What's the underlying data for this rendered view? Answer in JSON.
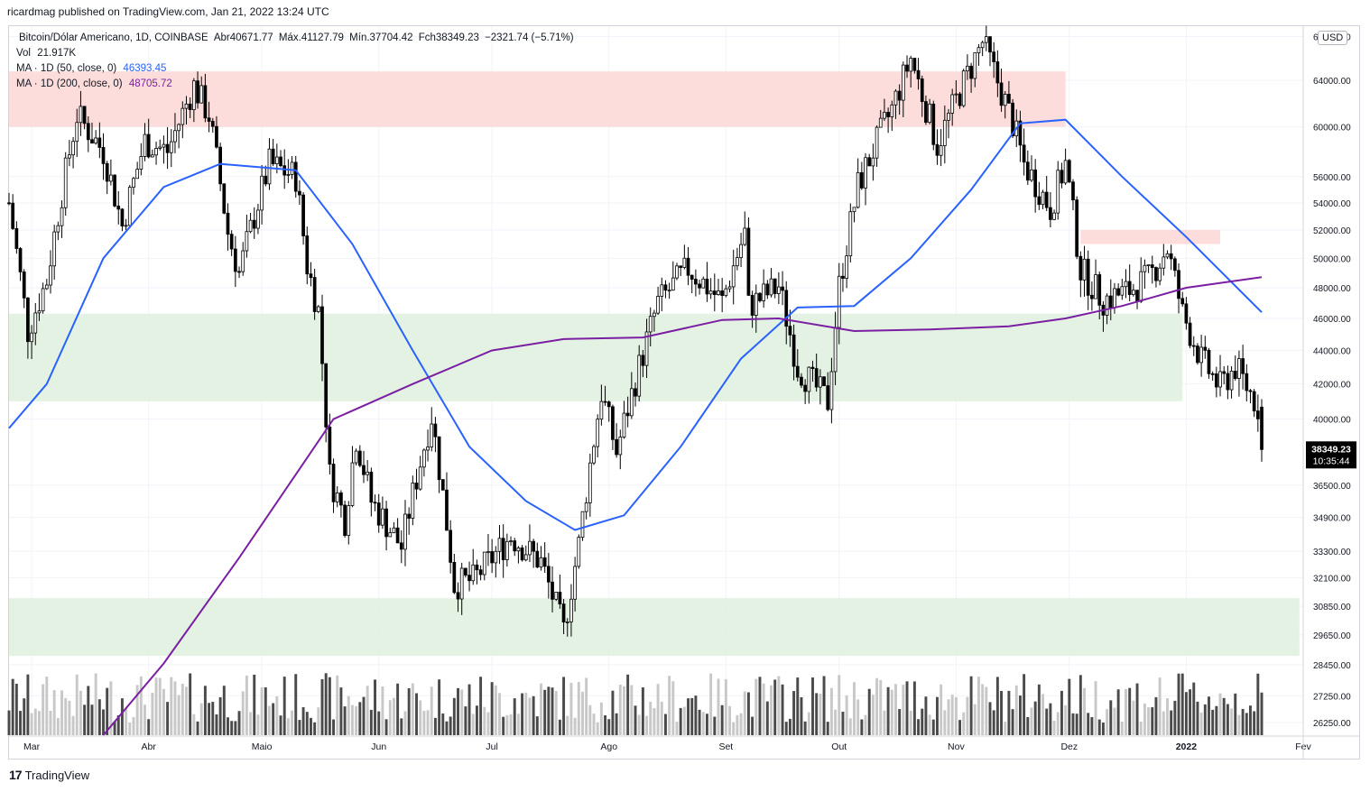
{
  "header": {
    "publisher": "ricardmag published on TradingView.com, Jan 21, 2022 13:24 UTC"
  },
  "legend": {
    "symbol": "Bitcoin/Dólar Americano, 1D, COINBASE",
    "open": "Abr40671.77",
    "high": "Máx.41127.79",
    "low": "Mín.37704.42",
    "close": "Fch38349.23",
    "change": "−2321.74 (−5.71%)",
    "vol_label": "Vol",
    "vol_value": "21.917K",
    "ma50_label": "MA · 1D (50, close, 0)",
    "ma50_value": "46393.45",
    "ma200_label": "MA · 1D (200, close, 0)",
    "ma200_value": "48705.72"
  },
  "price_axis": {
    "currency": "USD",
    "last_price": "38349.23",
    "countdown": "10:35:44"
  },
  "footer": {
    "brand": "TradingView"
  },
  "colors": {
    "up": "#ffffff",
    "down": "#000000",
    "ma50": "#2962ff",
    "ma200": "#7b1fa2",
    "supply_zone": "#fcd7d5",
    "demand_zone": "#dff0df",
    "vol_up": "#c8c8c8",
    "vol_down": "#4a4a4a"
  },
  "chart_data": {
    "type": "candlestick",
    "title": "Bitcoin/Dólar Americano, 1D, COINBASE",
    "x_ticks": [
      "Mar",
      "Abr",
      "Maio",
      "Jun",
      "Jul",
      "Ago",
      "Set",
      "Out",
      "Nov",
      "Dez",
      "2022",
      "Fev"
    ],
    "y_ticks": [
      "68000.00",
      "64000.00",
      "60000.00",
      "56000.00",
      "54000.00",
      "52000.00",
      "50000.00",
      "48000.00",
      "46000.00",
      "44000.00",
      "42000.00",
      "40000.00",
      "36500.00",
      "34900.00",
      "33300.00",
      "32100.00",
      "30850.00",
      "29650.00",
      "28450.00",
      "27250.00",
      "26250.00"
    ],
    "y_scale": "log",
    "x_range": [
      "2021-02-23",
      "2022-02-01"
    ],
    "y_range": [
      25800,
      69000
    ],
    "zones": [
      {
        "kind": "resistance",
        "from": "2021-02-23",
        "to": "2021-11-30",
        "low": 60000,
        "high": 64800
      },
      {
        "kind": "support",
        "from": "2021-02-23",
        "to": "2021-12-31",
        "low": 41000,
        "high": 46300
      },
      {
        "kind": "support",
        "from": "2021-02-23",
        "to": "2022-01-31",
        "low": 28800,
        "high": 31200
      },
      {
        "kind": "resistance",
        "from": "2021-12-04",
        "to": "2022-01-10",
        "low": 51000,
        "high": 52000
      }
    ],
    "close_path": [
      [
        "2021-02-23",
        54000
      ],
      [
        "2021-02-28",
        45200
      ],
      [
        "2021-03-05",
        48500
      ],
      [
        "2021-03-13",
        61000
      ],
      [
        "2021-03-20",
        58000
      ],
      [
        "2021-03-25",
        52300
      ],
      [
        "2021-03-31",
        58800
      ],
      [
        "2021-04-06",
        58000
      ],
      [
        "2021-04-13",
        63500
      ],
      [
        "2021-04-17",
        61000
      ],
      [
        "2021-04-22",
        51800
      ],
      [
        "2021-04-25",
        49000
      ],
      [
        "2021-05-03",
        57000
      ],
      [
        "2021-05-10",
        56000
      ],
      [
        "2021-05-13",
        49500
      ],
      [
        "2021-05-16",
        46500
      ],
      [
        "2021-05-19",
        37000
      ],
      [
        "2021-05-23",
        34800
      ],
      [
        "2021-05-26",
        39000
      ],
      [
        "2021-05-30",
        35700
      ],
      [
        "2021-06-07",
        33500
      ],
      [
        "2021-06-15",
        40200
      ],
      [
        "2021-06-21",
        31800
      ],
      [
        "2021-06-26",
        32000
      ],
      [
        "2021-07-06",
        34000
      ],
      [
        "2021-07-14",
        32800
      ],
      [
        "2021-07-20",
        29800
      ],
      [
        "2021-07-24",
        33600
      ],
      [
        "2021-07-30",
        41500
      ],
      [
        "2021-08-03",
        38200
      ],
      [
        "2021-08-14",
        47000
      ],
      [
        "2021-08-22",
        49300
      ],
      [
        "2021-08-31",
        47100
      ],
      [
        "2021-09-06",
        51800
      ],
      [
        "2021-09-07",
        46800
      ],
      [
        "2021-09-15",
        48100
      ],
      [
        "2021-09-20",
        43000
      ],
      [
        "2021-09-28",
        41000
      ],
      [
        "2021-10-01",
        48100
      ],
      [
        "2021-10-06",
        55300
      ],
      [
        "2021-10-15",
        61500
      ],
      [
        "2021-10-20",
        66000
      ],
      [
        "2021-10-27",
        58500
      ],
      [
        "2021-11-02",
        63000
      ],
      [
        "2021-11-08",
        67500
      ],
      [
        "2021-11-16",
        60300
      ],
      [
        "2021-11-19",
        57000
      ],
      [
        "2021-11-26",
        53600
      ],
      [
        "2021-11-30",
        57000
      ],
      [
        "2021-12-04",
        49200
      ],
      [
        "2021-12-10",
        47200
      ],
      [
        "2021-12-16",
        47700
      ],
      [
        "2021-12-22",
        48600
      ],
      [
        "2021-12-27",
        50700
      ],
      [
        "2021-12-31",
        46300
      ],
      [
        "2022-01-05",
        43400
      ],
      [
        "2022-01-10",
        41800
      ],
      [
        "2022-01-14",
        43000
      ],
      [
        "2022-01-20",
        40700
      ],
      [
        "2022-01-21",
        38349.23
      ]
    ],
    "series": [
      {
        "name": "MA · 1D (50, close, 0)",
        "value_last": 46393.45,
        "points": [
          [
            "2021-02-23",
            39500
          ],
          [
            "2021-03-05",
            42000
          ],
          [
            "2021-03-20",
            50000
          ],
          [
            "2021-04-05",
            55200
          ],
          [
            "2021-04-20",
            57000
          ],
          [
            "2021-05-10",
            56500
          ],
          [
            "2021-05-25",
            51000
          ],
          [
            "2021-06-10",
            44000
          ],
          [
            "2021-06-25",
            38500
          ],
          [
            "2021-07-10",
            35700
          ],
          [
            "2021-07-23",
            34300
          ],
          [
            "2021-08-05",
            35000
          ],
          [
            "2021-08-20",
            38500
          ],
          [
            "2021-09-05",
            43500
          ],
          [
            "2021-09-20",
            46700
          ],
          [
            "2021-10-05",
            46800
          ],
          [
            "2021-10-20",
            50000
          ],
          [
            "2021-11-05",
            55000
          ],
          [
            "2021-11-18",
            60300
          ],
          [
            "2021-11-30",
            60600
          ],
          [
            "2021-12-15",
            56000
          ],
          [
            "2022-01-01",
            51500
          ],
          [
            "2022-01-21",
            46393.45
          ]
        ]
      },
      {
        "name": "MA · 1D (200, close, 0)",
        "value_last": 48705.72,
        "points": [
          [
            "2021-03-20",
            25800
          ],
          [
            "2021-04-05",
            28500
          ],
          [
            "2021-04-25",
            33000
          ],
          [
            "2021-05-20",
            40000
          ],
          [
            "2021-06-10",
            42000
          ],
          [
            "2021-07-01",
            44000
          ],
          [
            "2021-07-20",
            44700
          ],
          [
            "2021-08-10",
            44800
          ],
          [
            "2021-08-31",
            45900
          ],
          [
            "2021-09-15",
            46000
          ],
          [
            "2021-10-05",
            45200
          ],
          [
            "2021-10-25",
            45300
          ],
          [
            "2021-11-15",
            45500
          ],
          [
            "2021-11-30",
            46000
          ],
          [
            "2021-12-15",
            46800
          ],
          [
            "2022-01-01",
            48000
          ],
          [
            "2022-01-21",
            48705.72
          ]
        ]
      }
    ]
  }
}
